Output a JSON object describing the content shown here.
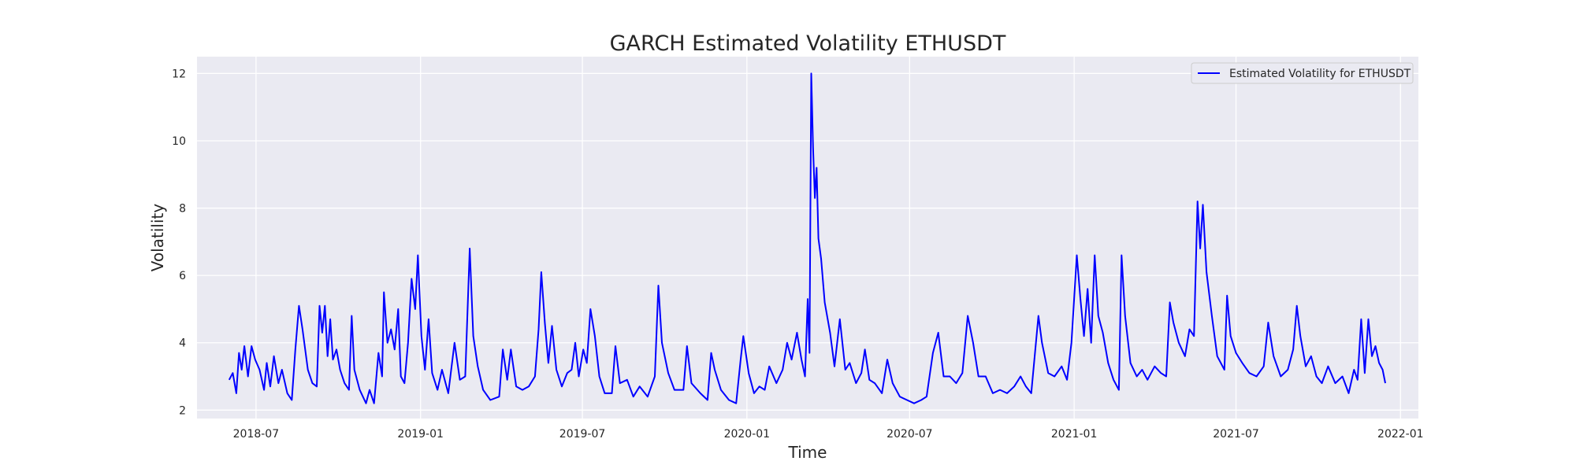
{
  "chart_data": {
    "type": "line",
    "title": "GARCH Estimated Volatility ETHUSDT",
    "xlabel": "Time",
    "ylabel": "Volatility",
    "x_ticks": [
      "2018-07",
      "2019-01",
      "2019-07",
      "2020-01",
      "2020-07",
      "2021-01",
      "2021-07",
      "2022-01"
    ],
    "y_ticks": [
      "2",
      "4",
      "6",
      "8",
      "10",
      "12"
    ],
    "xlim": [
      "2018-04-26",
      "2022-01-21"
    ],
    "ylim": [
      1.75,
      12.5
    ],
    "grid": true,
    "legend_position": "top-right",
    "series": [
      {
        "name": "Estimated Volatility for ETHUSDT",
        "color": "#0000ff",
        "points": [
          [
            "2018-06-01",
            2.9
          ],
          [
            "2018-06-05",
            3.1
          ],
          [
            "2018-06-09",
            2.5
          ],
          [
            "2018-06-12",
            3.7
          ],
          [
            "2018-06-15",
            3.2
          ],
          [
            "2018-06-18",
            3.9
          ],
          [
            "2018-06-22",
            3.0
          ],
          [
            "2018-06-26",
            3.9
          ],
          [
            "2018-06-30",
            3.5
          ],
          [
            "2018-07-05",
            3.2
          ],
          [
            "2018-07-10",
            2.6
          ],
          [
            "2018-07-13",
            3.4
          ],
          [
            "2018-07-17",
            2.7
          ],
          [
            "2018-07-21",
            3.6
          ],
          [
            "2018-07-26",
            2.8
          ],
          [
            "2018-07-30",
            3.2
          ],
          [
            "2018-08-05",
            2.5
          ],
          [
            "2018-08-10",
            2.3
          ],
          [
            "2018-08-14",
            3.8
          ],
          [
            "2018-08-18",
            5.1
          ],
          [
            "2018-08-22",
            4.4
          ],
          [
            "2018-08-28",
            3.2
          ],
          [
            "2018-09-02",
            2.8
          ],
          [
            "2018-09-07",
            2.7
          ],
          [
            "2018-09-10",
            5.1
          ],
          [
            "2018-09-13",
            4.3
          ],
          [
            "2018-09-16",
            5.1
          ],
          [
            "2018-09-19",
            3.6
          ],
          [
            "2018-09-22",
            4.7
          ],
          [
            "2018-09-25",
            3.5
          ],
          [
            "2018-09-29",
            3.8
          ],
          [
            "2018-10-03",
            3.2
          ],
          [
            "2018-10-08",
            2.8
          ],
          [
            "2018-10-13",
            2.6
          ],
          [
            "2018-10-16",
            4.8
          ],
          [
            "2018-10-19",
            3.2
          ],
          [
            "2018-10-25",
            2.6
          ],
          [
            "2018-11-01",
            2.2
          ],
          [
            "2018-11-05",
            2.6
          ],
          [
            "2018-11-10",
            2.2
          ],
          [
            "2018-11-15",
            3.7
          ],
          [
            "2018-11-19",
            3.0
          ],
          [
            "2018-11-21",
            5.5
          ],
          [
            "2018-11-25",
            4.0
          ],
          [
            "2018-11-29",
            4.4
          ],
          [
            "2018-12-03",
            3.8
          ],
          [
            "2018-12-07",
            5.0
          ],
          [
            "2018-12-10",
            3.0
          ],
          [
            "2018-12-14",
            2.8
          ],
          [
            "2018-12-18",
            4.0
          ],
          [
            "2018-12-22",
            5.9
          ],
          [
            "2018-12-26",
            5.0
          ],
          [
            "2018-12-29",
            6.6
          ],
          [
            "2019-01-02",
            4.2
          ],
          [
            "2019-01-06",
            3.2
          ],
          [
            "2019-01-10",
            4.7
          ],
          [
            "2019-01-14",
            3.1
          ],
          [
            "2019-01-20",
            2.6
          ],
          [
            "2019-01-25",
            3.2
          ],
          [
            "2019-02-01",
            2.5
          ],
          [
            "2019-02-08",
            4.0
          ],
          [
            "2019-02-14",
            2.9
          ],
          [
            "2019-02-20",
            3.0
          ],
          [
            "2019-02-25",
            6.8
          ],
          [
            "2019-03-01",
            4.2
          ],
          [
            "2019-03-06",
            3.3
          ],
          [
            "2019-03-12",
            2.6
          ],
          [
            "2019-03-20",
            2.3
          ],
          [
            "2019-03-30",
            2.4
          ],
          [
            "2019-04-03",
            3.8
          ],
          [
            "2019-04-08",
            2.9
          ],
          [
            "2019-04-12",
            3.8
          ],
          [
            "2019-04-18",
            2.7
          ],
          [
            "2019-04-25",
            2.6
          ],
          [
            "2019-05-02",
            2.7
          ],
          [
            "2019-05-09",
            3.0
          ],
          [
            "2019-05-13",
            4.4
          ],
          [
            "2019-05-16",
            6.1
          ],
          [
            "2019-05-20",
            4.6
          ],
          [
            "2019-05-24",
            3.4
          ],
          [
            "2019-05-28",
            4.5
          ],
          [
            "2019-06-02",
            3.2
          ],
          [
            "2019-06-08",
            2.7
          ],
          [
            "2019-06-14",
            3.1
          ],
          [
            "2019-06-19",
            3.2
          ],
          [
            "2019-06-23",
            4.0
          ],
          [
            "2019-06-27",
            3.0
          ],
          [
            "2019-07-02",
            3.8
          ],
          [
            "2019-07-06",
            3.4
          ],
          [
            "2019-07-10",
            5.0
          ],
          [
            "2019-07-15",
            4.2
          ],
          [
            "2019-07-20",
            3.0
          ],
          [
            "2019-07-26",
            2.5
          ],
          [
            "2019-08-03",
            2.5
          ],
          [
            "2019-08-07",
            3.9
          ],
          [
            "2019-08-12",
            2.8
          ],
          [
            "2019-08-20",
            2.9
          ],
          [
            "2019-08-27",
            2.4
          ],
          [
            "2019-09-03",
            2.7
          ],
          [
            "2019-09-12",
            2.4
          ],
          [
            "2019-09-20",
            3.0
          ],
          [
            "2019-09-24",
            5.7
          ],
          [
            "2019-09-28",
            4.0
          ],
          [
            "2019-10-05",
            3.1
          ],
          [
            "2019-10-12",
            2.6
          ],
          [
            "2019-10-22",
            2.6
          ],
          [
            "2019-10-26",
            3.9
          ],
          [
            "2019-10-31",
            2.8
          ],
          [
            "2019-11-10",
            2.5
          ],
          [
            "2019-11-18",
            2.3
          ],
          [
            "2019-11-22",
            3.7
          ],
          [
            "2019-11-26",
            3.2
          ],
          [
            "2019-12-03",
            2.6
          ],
          [
            "2019-12-12",
            2.3
          ],
          [
            "2019-12-20",
            2.2
          ],
          [
            "2019-12-25",
            3.5
          ],
          [
            "2019-12-28",
            4.2
          ],
          [
            "2020-01-03",
            3.1
          ],
          [
            "2020-01-09",
            2.5
          ],
          [
            "2020-01-15",
            2.7
          ],
          [
            "2020-01-21",
            2.6
          ],
          [
            "2020-01-26",
            3.3
          ],
          [
            "2020-02-03",
            2.8
          ],
          [
            "2020-02-10",
            3.2
          ],
          [
            "2020-02-15",
            4.0
          ],
          [
            "2020-02-20",
            3.5
          ],
          [
            "2020-02-26",
            4.3
          ],
          [
            "2020-03-02",
            3.5
          ],
          [
            "2020-03-06",
            3.0
          ],
          [
            "2020-03-09",
            5.3
          ],
          [
            "2020-03-11",
            3.7
          ],
          [
            "2020-03-13",
            12.0
          ],
          [
            "2020-03-15",
            9.8
          ],
          [
            "2020-03-17",
            8.3
          ],
          [
            "2020-03-19",
            9.2
          ],
          [
            "2020-03-21",
            7.1
          ],
          [
            "2020-03-24",
            6.5
          ],
          [
            "2020-03-28",
            5.2
          ],
          [
            "2020-04-03",
            4.3
          ],
          [
            "2020-04-08",
            3.3
          ],
          [
            "2020-04-14",
            4.7
          ],
          [
            "2020-04-20",
            3.2
          ],
          [
            "2020-04-25",
            3.4
          ],
          [
            "2020-05-02",
            2.8
          ],
          [
            "2020-05-08",
            3.1
          ],
          [
            "2020-05-12",
            3.8
          ],
          [
            "2020-05-17",
            2.9
          ],
          [
            "2020-05-23",
            2.8
          ],
          [
            "2020-05-31",
            2.5
          ],
          [
            "2020-06-06",
            3.5
          ],
          [
            "2020-06-12",
            2.8
          ],
          [
            "2020-06-20",
            2.4
          ],
          [
            "2020-06-28",
            2.3
          ],
          [
            "2020-07-06",
            2.2
          ],
          [
            "2020-07-14",
            2.3
          ],
          [
            "2020-07-20",
            2.4
          ],
          [
            "2020-07-27",
            3.7
          ],
          [
            "2020-08-02",
            4.3
          ],
          [
            "2020-08-08",
            3.0
          ],
          [
            "2020-08-15",
            3.0
          ],
          [
            "2020-08-22",
            2.8
          ],
          [
            "2020-08-29",
            3.1
          ],
          [
            "2020-09-04",
            4.8
          ],
          [
            "2020-09-10",
            4.0
          ],
          [
            "2020-09-16",
            3.0
          ],
          [
            "2020-09-24",
            3.0
          ],
          [
            "2020-10-02",
            2.5
          ],
          [
            "2020-10-10",
            2.6
          ],
          [
            "2020-10-18",
            2.5
          ],
          [
            "2020-10-26",
            2.7
          ],
          [
            "2020-11-02",
            3.0
          ],
          [
            "2020-11-08",
            2.7
          ],
          [
            "2020-11-14",
            2.5
          ],
          [
            "2020-11-22",
            4.8
          ],
          [
            "2020-11-26",
            4.0
          ],
          [
            "2020-12-03",
            3.1
          ],
          [
            "2020-12-10",
            3.0
          ],
          [
            "2020-12-18",
            3.3
          ],
          [
            "2020-12-24",
            2.9
          ],
          [
            "2020-12-29",
            4.0
          ],
          [
            "2021-01-04",
            6.6
          ],
          [
            "2021-01-08",
            5.3
          ],
          [
            "2021-01-12",
            4.2
          ],
          [
            "2021-01-16",
            5.6
          ],
          [
            "2021-01-20",
            4.0
          ],
          [
            "2021-01-24",
            6.6
          ],
          [
            "2021-01-28",
            4.8
          ],
          [
            "2021-02-02",
            4.3
          ],
          [
            "2021-02-08",
            3.4
          ],
          [
            "2021-02-14",
            2.9
          ],
          [
            "2021-02-20",
            2.6
          ],
          [
            "2021-02-23",
            6.6
          ],
          [
            "2021-02-27",
            4.8
          ],
          [
            "2021-03-05",
            3.4
          ],
          [
            "2021-03-12",
            3.0
          ],
          [
            "2021-03-18",
            3.2
          ],
          [
            "2021-03-24",
            2.9
          ],
          [
            "2021-04-01",
            3.3
          ],
          [
            "2021-04-08",
            3.1
          ],
          [
            "2021-04-14",
            3.0
          ],
          [
            "2021-04-18",
            5.2
          ],
          [
            "2021-04-22",
            4.6
          ],
          [
            "2021-04-28",
            4.0
          ],
          [
            "2021-05-05",
            3.6
          ],
          [
            "2021-05-10",
            4.4
          ],
          [
            "2021-05-15",
            4.2
          ],
          [
            "2021-05-19",
            8.2
          ],
          [
            "2021-05-22",
            6.8
          ],
          [
            "2021-05-25",
            8.1
          ],
          [
            "2021-05-29",
            6.1
          ],
          [
            "2021-06-04",
            4.8
          ],
          [
            "2021-06-10",
            3.6
          ],
          [
            "2021-06-18",
            3.2
          ],
          [
            "2021-06-21",
            5.4
          ],
          [
            "2021-06-25",
            4.2
          ],
          [
            "2021-07-01",
            3.7
          ],
          [
            "2021-07-08",
            3.4
          ],
          [
            "2021-07-16",
            3.1
          ],
          [
            "2021-07-24",
            3.0
          ],
          [
            "2021-08-01",
            3.3
          ],
          [
            "2021-08-06",
            4.6
          ],
          [
            "2021-08-12",
            3.6
          ],
          [
            "2021-08-20",
            3.0
          ],
          [
            "2021-08-28",
            3.2
          ],
          [
            "2021-09-03",
            3.8
          ],
          [
            "2021-09-07",
            5.1
          ],
          [
            "2021-09-11",
            4.2
          ],
          [
            "2021-09-17",
            3.3
          ],
          [
            "2021-09-23",
            3.6
          ],
          [
            "2021-09-29",
            3.0
          ],
          [
            "2021-10-05",
            2.8
          ],
          [
            "2021-10-12",
            3.3
          ],
          [
            "2021-10-20",
            2.8
          ],
          [
            "2021-10-28",
            3.0
          ],
          [
            "2021-11-04",
            2.5
          ],
          [
            "2021-11-10",
            3.2
          ],
          [
            "2021-11-14",
            2.9
          ],
          [
            "2021-11-18",
            4.7
          ],
          [
            "2021-11-22",
            3.1
          ],
          [
            "2021-11-26",
            4.7
          ],
          [
            "2021-11-30",
            3.6
          ],
          [
            "2021-12-04",
            3.9
          ],
          [
            "2021-12-08",
            3.4
          ],
          [
            "2021-12-12",
            3.2
          ],
          [
            "2021-12-15",
            2.8
          ]
        ]
      }
    ]
  }
}
